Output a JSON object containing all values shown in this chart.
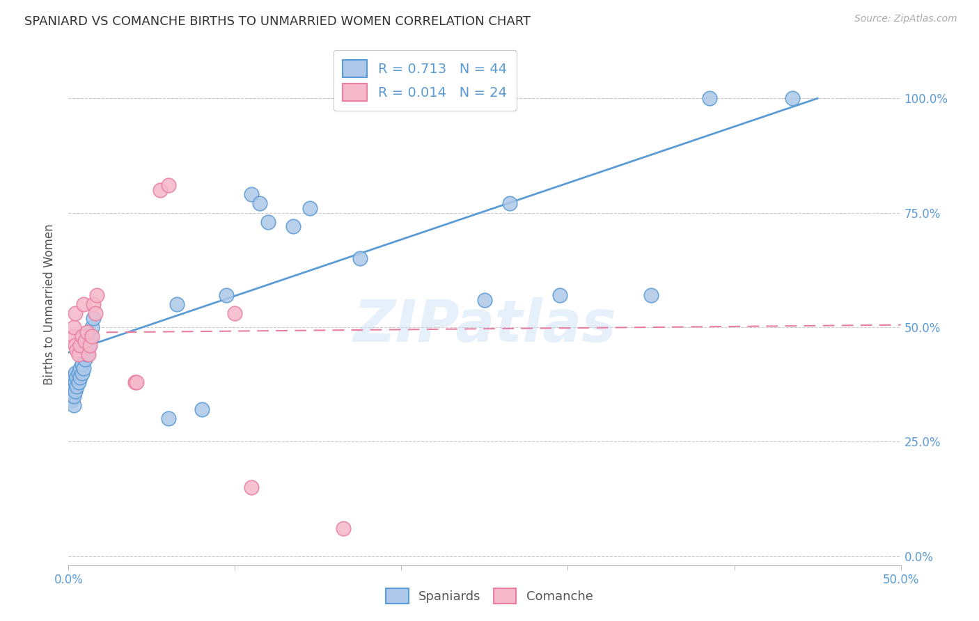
{
  "title": "SPANIARD VS COMANCHE BIRTHS TO UNMARRIED WOMEN CORRELATION CHART",
  "source": "Source: ZipAtlas.com",
  "ylabel": "Births to Unmarried Women",
  "xlim": [
    0.0,
    0.5
  ],
  "ylim": [
    -0.02,
    1.12
  ],
  "y_ticks": [
    0.0,
    0.25,
    0.5,
    0.75,
    1.0
  ],
  "y_tick_labels": [
    "0.0%",
    "25.0%",
    "50.0%",
    "75.0%",
    "100.0%"
  ],
  "x_ticks": [
    0.0,
    0.1,
    0.2,
    0.3,
    0.4,
    0.5
  ],
  "x_tick_labels_show": [
    "0.0%",
    "",
    "",
    "",
    "",
    "50.0%"
  ],
  "legend_r_blue": "R = 0.713   N = 44",
  "legend_r_pink": "R = 0.014   N = 24",
  "legend_label_spaniards": "Spaniards",
  "legend_label_comanche": "Comanche",
  "spaniards_color": "#adc8e8",
  "comanche_color": "#f5b8cb",
  "spaniards_edge_color": "#5b9bd5",
  "comanche_edge_color": "#e87fa0",
  "spaniards_line_color": "#5b9bd5",
  "comanche_line_color": "#e87fa0",
  "spaniards_trendline_x": [
    0.0,
    0.45
  ],
  "spaniards_trendline_y": [
    0.445,
    1.0
  ],
  "comanche_trendline_x": [
    0.0,
    0.5
  ],
  "comanche_trendline_y": [
    0.488,
    0.505
  ],
  "grid_color": "#cccccc",
  "background_color": "#ffffff",
  "watermark": "ZIPatlas",
  "spaniards_x": [
    0.001,
    0.001,
    0.002,
    0.002,
    0.002,
    0.003,
    0.003,
    0.003,
    0.003,
    0.004,
    0.004,
    0.004,
    0.005,
    0.005,
    0.006,
    0.006,
    0.007,
    0.007,
    0.008,
    0.008,
    0.009,
    0.01,
    0.011,
    0.012,
    0.013,
    0.014,
    0.015,
    0.06,
    0.065,
    0.08,
    0.095,
    0.11,
    0.115,
    0.12,
    0.135,
    0.145,
    0.175,
    0.23,
    0.25,
    0.265,
    0.295,
    0.35,
    0.385,
    0.435
  ],
  "spaniards_y": [
    0.35,
    0.37,
    0.34,
    0.36,
    0.38,
    0.33,
    0.35,
    0.37,
    0.39,
    0.36,
    0.38,
    0.4,
    0.37,
    0.39,
    0.38,
    0.4,
    0.39,
    0.41,
    0.4,
    0.42,
    0.41,
    0.43,
    0.44,
    0.46,
    0.48,
    0.5,
    0.52,
    0.3,
    0.55,
    0.32,
    0.57,
    0.79,
    0.77,
    0.73,
    0.72,
    0.76,
    0.65,
    1.0,
    0.56,
    0.77,
    0.57,
    0.57,
    1.0,
    1.0
  ],
  "comanche_x": [
    0.003,
    0.003,
    0.004,
    0.004,
    0.005,
    0.006,
    0.007,
    0.008,
    0.009,
    0.01,
    0.011,
    0.012,
    0.013,
    0.014,
    0.015,
    0.016,
    0.017,
    0.04,
    0.041,
    0.055,
    0.06,
    0.1,
    0.11,
    0.165
  ],
  "comanche_y": [
    0.48,
    0.5,
    0.46,
    0.53,
    0.45,
    0.44,
    0.46,
    0.48,
    0.55,
    0.47,
    0.49,
    0.44,
    0.46,
    0.48,
    0.55,
    0.53,
    0.57,
    0.38,
    0.38,
    0.8,
    0.81,
    0.53,
    0.15,
    0.06
  ]
}
